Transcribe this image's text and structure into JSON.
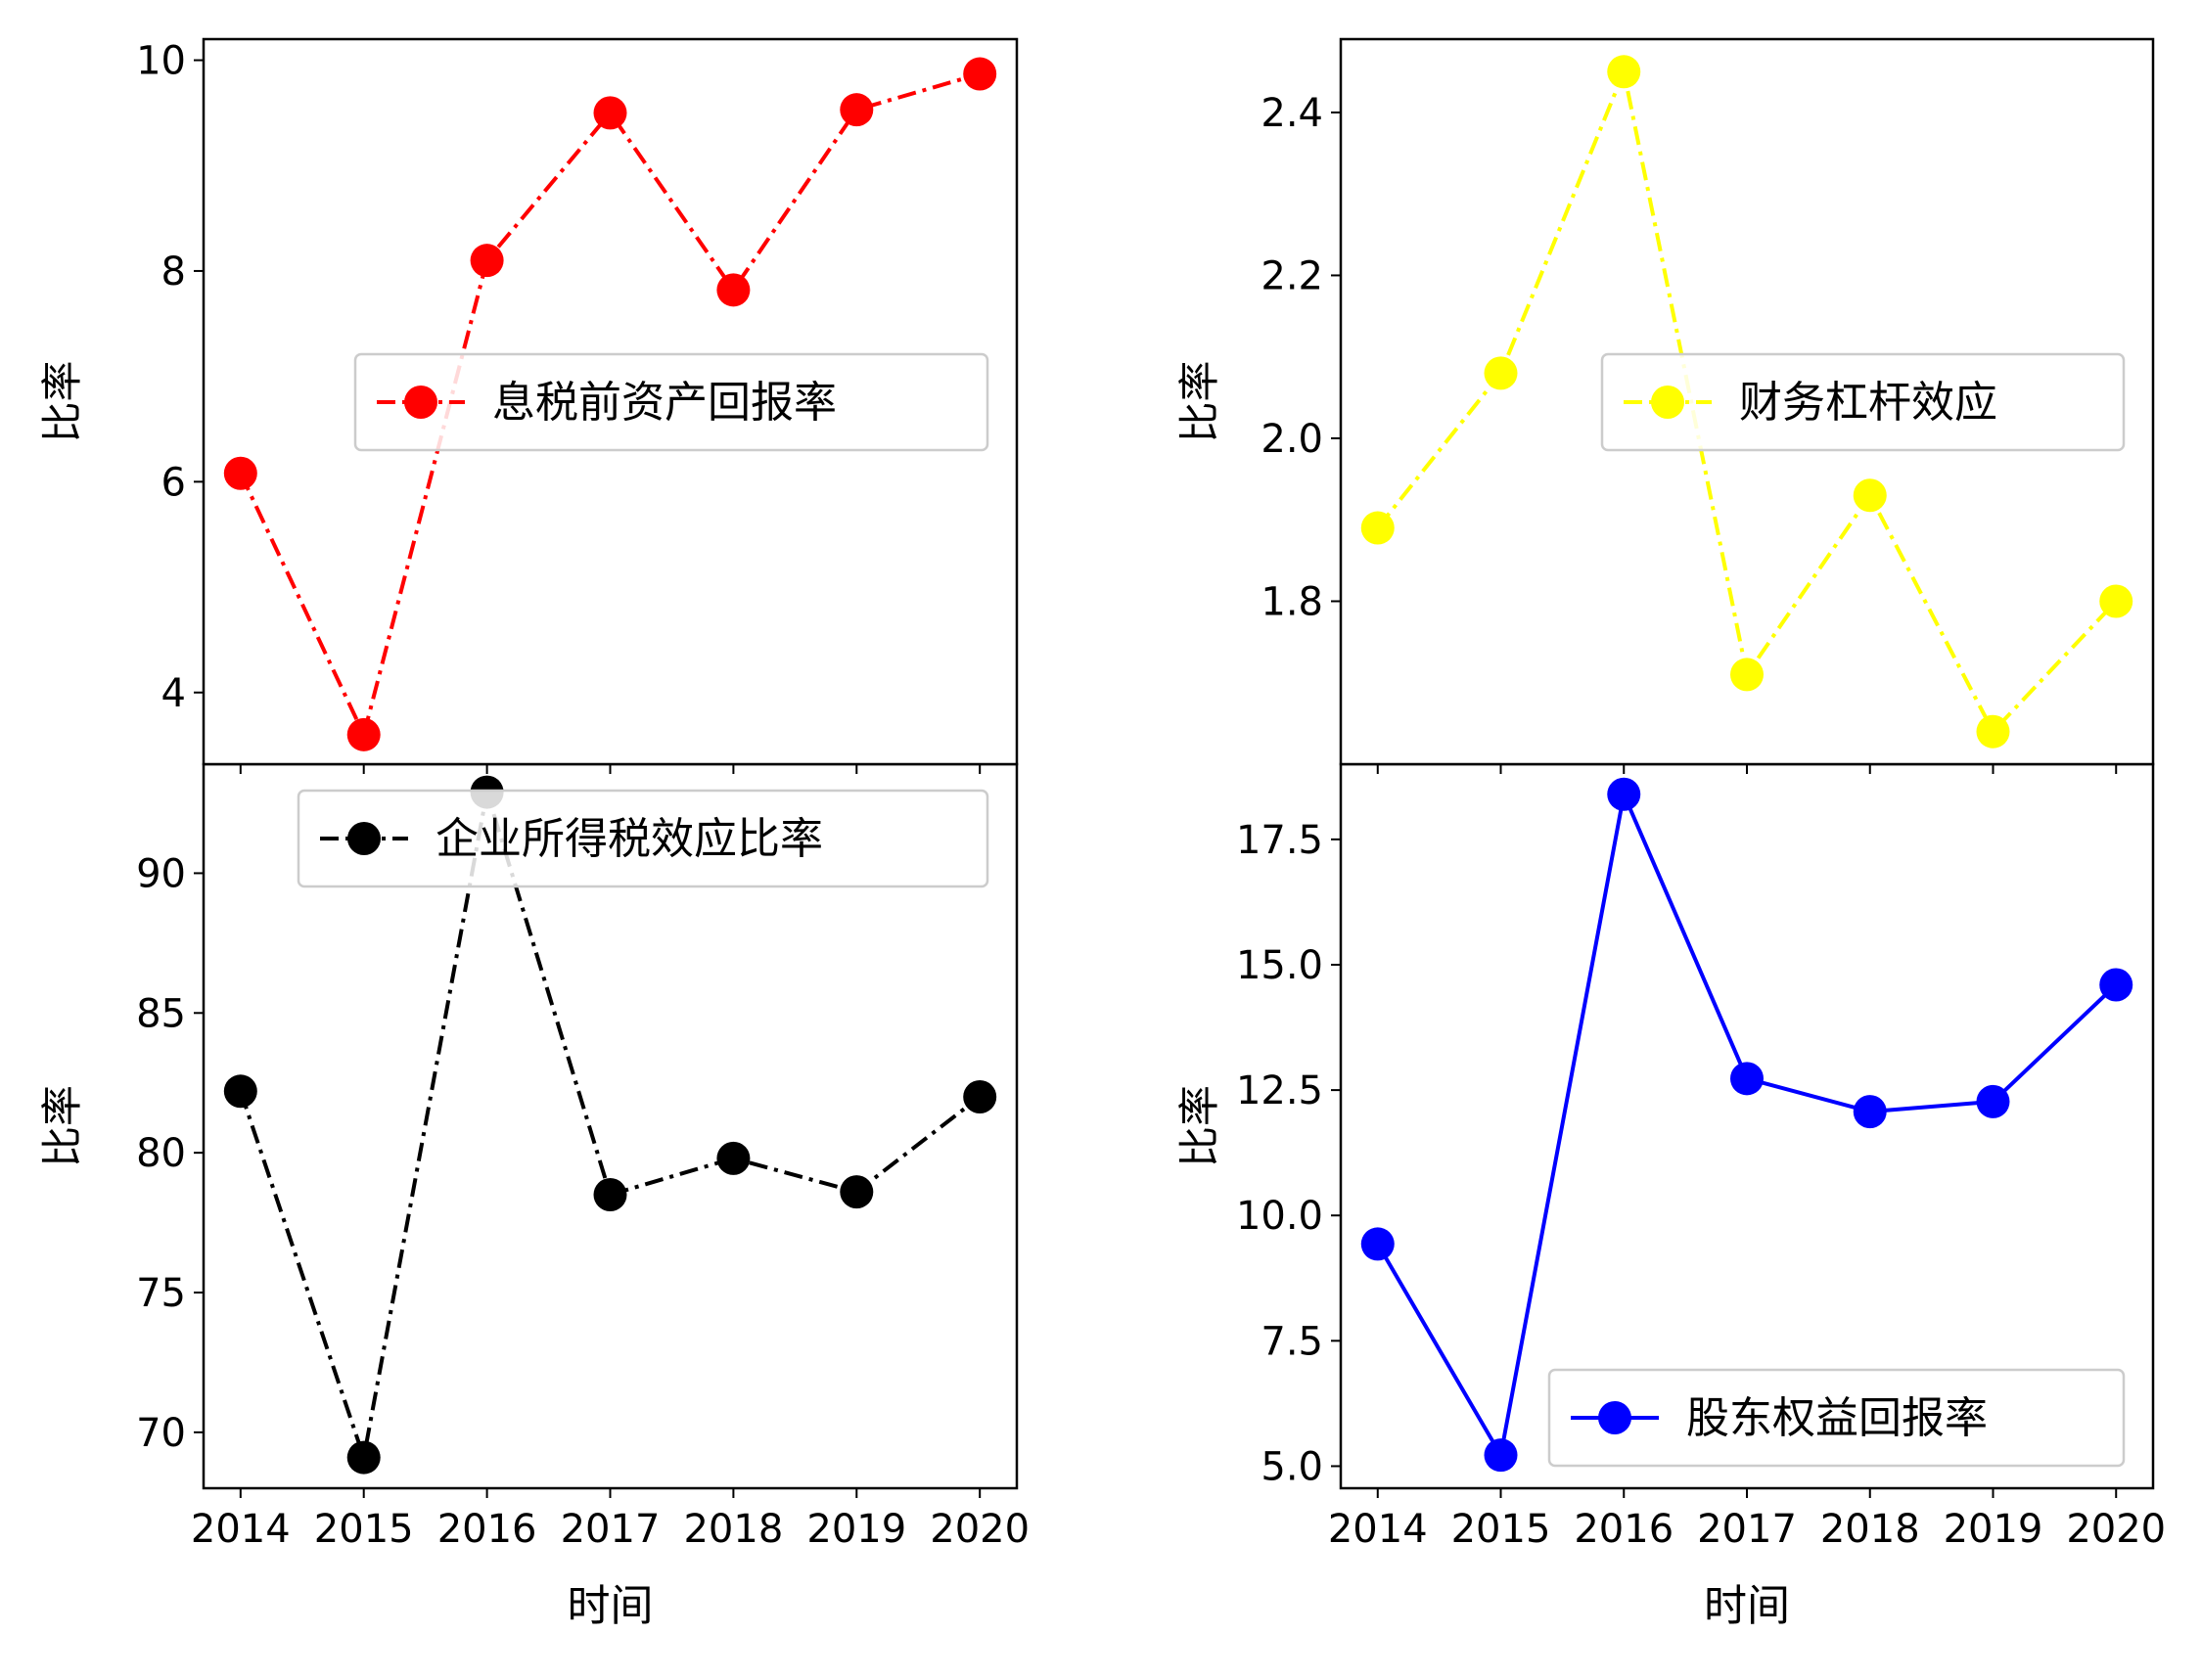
{
  "chart_data": [
    {
      "type": "line",
      "x": [
        2014,
        2015,
        2016,
        2017,
        2018,
        2019,
        2020
      ],
      "series": [
        {
          "name": "息税前资产回报率",
          "values": [
            6.08,
            3.6,
            8.1,
            9.5,
            7.82,
            9.53,
            9.87
          ],
          "color": "#ff0000",
          "linestyle": "dashdot",
          "marker": "circle"
        }
      ],
      "xlabel": "",
      "ylabel": "比率",
      "yticks": [
        4,
        6,
        8,
        10
      ],
      "ytick_labels": [
        "4",
        "6",
        "8",
        "10"
      ],
      "ylim": [
        3.32,
        10.2
      ],
      "xtick_labels": [],
      "legend": "right",
      "grid": false
    },
    {
      "type": "line",
      "x": [
        2014,
        2015,
        2016,
        2017,
        2018,
        2019,
        2020
      ],
      "series": [
        {
          "name": "财务杠杆效应",
          "values": [
            1.89,
            2.08,
            2.45,
            1.71,
            1.93,
            1.64,
            1.8
          ],
          "color": "#ffff00",
          "linestyle": "dashdot",
          "marker": "circle"
        }
      ],
      "xlabel": "",
      "ylabel": "比率",
      "yticks": [
        1.8,
        2.0,
        2.2,
        2.4
      ],
      "ytick_labels": [
        "1.8",
        "2.0",
        "2.2",
        "2.4"
      ],
      "ylim": [
        1.6,
        2.49
      ],
      "xtick_labels": [],
      "legend": "right",
      "grid": false
    },
    {
      "type": "line",
      "x": [
        2014,
        2015,
        2016,
        2017,
        2018,
        2019,
        2020
      ],
      "series": [
        {
          "name": "企业所得税效应比率",
          "values": [
            82.2,
            69.1,
            92.9,
            78.5,
            79.8,
            78.6,
            82.0
          ],
          "color": "#000000",
          "linestyle": "dashdot",
          "marker": "circle"
        }
      ],
      "xlabel": "时间",
      "ylabel": "比率",
      "yticks": [
        70,
        75,
        80,
        85,
        90
      ],
      "ytick_labels": [
        "70",
        "75",
        "80",
        "85",
        "90"
      ],
      "ylim": [
        68.0,
        93.9
      ],
      "xtick_labels": [
        "2014",
        "2015",
        "2016",
        "2017",
        "2018",
        "2019",
        "2020"
      ],
      "legend": "top-right",
      "grid": false
    },
    {
      "type": "line",
      "x": [
        2014,
        2015,
        2016,
        2017,
        2018,
        2019,
        2020
      ],
      "series": [
        {
          "name": "股东权益回报率",
          "values": [
            9.43,
            5.22,
            18.4,
            12.73,
            12.07,
            12.27,
            14.6
          ],
          "color": "#0000ff",
          "linestyle": "solid",
          "marker": "circle"
        }
      ],
      "xlabel": "时间",
      "ylabel": "比率",
      "yticks": [
        5.0,
        7.5,
        10.0,
        12.5,
        15.0,
        17.5
      ],
      "ytick_labels": [
        "5.0",
        "7.5",
        "10.0",
        "12.5",
        "15.0",
        "17.5"
      ],
      "ylim": [
        4.56,
        19.0
      ],
      "xtick_labels": [
        "2014",
        "2015",
        "2016",
        "2017",
        "2018",
        "2019",
        "2020"
      ],
      "legend": "bottom-right",
      "grid": false
    }
  ]
}
